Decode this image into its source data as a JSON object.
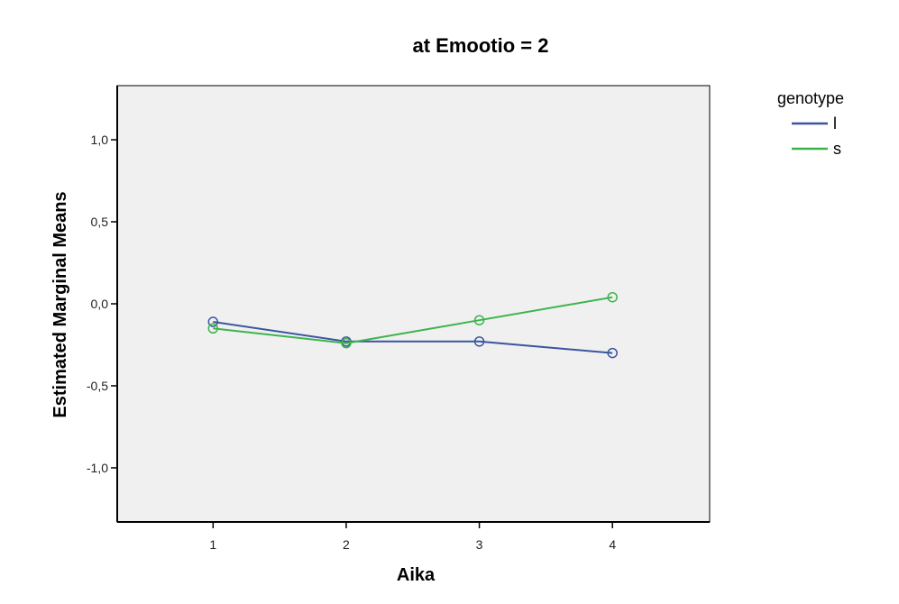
{
  "chart_data": {
    "type": "line",
    "title": "at Emootio = 2",
    "xlabel": "Aika",
    "ylabel": "Estimated Marginal Means",
    "x": [
      1,
      2,
      3,
      4
    ],
    "x_tick_labels": [
      "1",
      "2",
      "3",
      "4"
    ],
    "xlim": [
      0.28,
      4.73
    ],
    "ylim": [
      -1.33,
      1.33
    ],
    "y_ticks": [
      1.0,
      0.5,
      0.0,
      -0.5,
      -1.0
    ],
    "y_tick_labels": [
      "1,0",
      "0,5",
      "0,0",
      "-0,5",
      "-1,0"
    ],
    "grid": false,
    "marker": "open-circle",
    "legend": {
      "title": "genotype",
      "position": "top-right-outside"
    },
    "series": [
      {
        "name": "l",
        "color": "#3b55a0",
        "values": [
          -0.11,
          -0.23,
          -0.23,
          -0.3
        ]
      },
      {
        "name": "s",
        "color": "#3cb44b",
        "values": [
          -0.15,
          -0.24,
          -0.1,
          0.04
        ]
      }
    ],
    "plot_background": "#f0f0f0"
  }
}
